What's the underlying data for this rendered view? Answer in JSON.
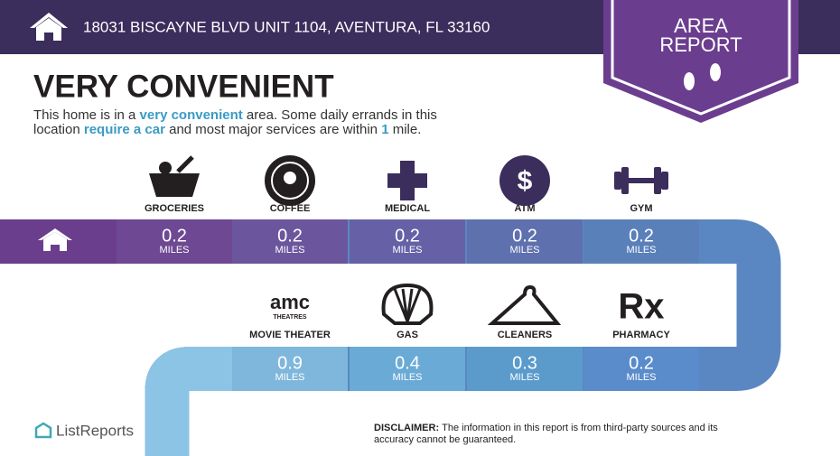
{
  "header": {
    "address": "18031 BISCAYNE BLVD UNIT 1104, AVENTURA, FL 33160",
    "badge": [
      "AREA",
      "REPORT"
    ]
  },
  "heading": "VERY CONVENIENT",
  "description": [
    {
      "text": "This home is in a "
    },
    {
      "text": "very convenient",
      "emphasis": true
    },
    {
      "text": " area. Some daily errands in this location "
    },
    {
      "text": "require a car",
      "emphasis": true
    },
    {
      "text": " and most major services are within "
    },
    {
      "text": "1",
      "emphasis": true
    },
    {
      "text": " mile."
    }
  ],
  "amenities": [
    {
      "name": "GROCERIES",
      "distance": 0.2,
      "unit": "MILES"
    },
    {
      "name": "COFFEE",
      "distance": 0.2,
      "unit": "MILES"
    },
    {
      "name": "MEDICAL",
      "distance": 0.2,
      "unit": "MILES"
    },
    {
      "name": "ATM",
      "distance": 0.2,
      "unit": "MILES",
      "icon_text": "$"
    },
    {
      "name": "GYM",
      "distance": 0.2,
      "unit": "MILES"
    },
    {
      "name": "MOVIE THEATER",
      "distance": 0.9,
      "unit": "MILES",
      "icon_text": [
        "amc",
        "THEATRES"
      ]
    },
    {
      "name": "GAS",
      "distance": 0.4,
      "unit": "MILES"
    },
    {
      "name": "CLEANERS",
      "distance": 0.3,
      "unit": "MILES"
    },
    {
      "name": "PHARMACY",
      "distance": 0.2,
      "unit": "MILES",
      "icon_text": "Rx"
    }
  ],
  "footer": {
    "brand": "ListReports",
    "disclaimer_label": "DISCLAIMER:",
    "disclaimer": [
      "The information in this report is from third-party sources and its",
      "accuracy cannot be guaranteed."
    ]
  }
}
